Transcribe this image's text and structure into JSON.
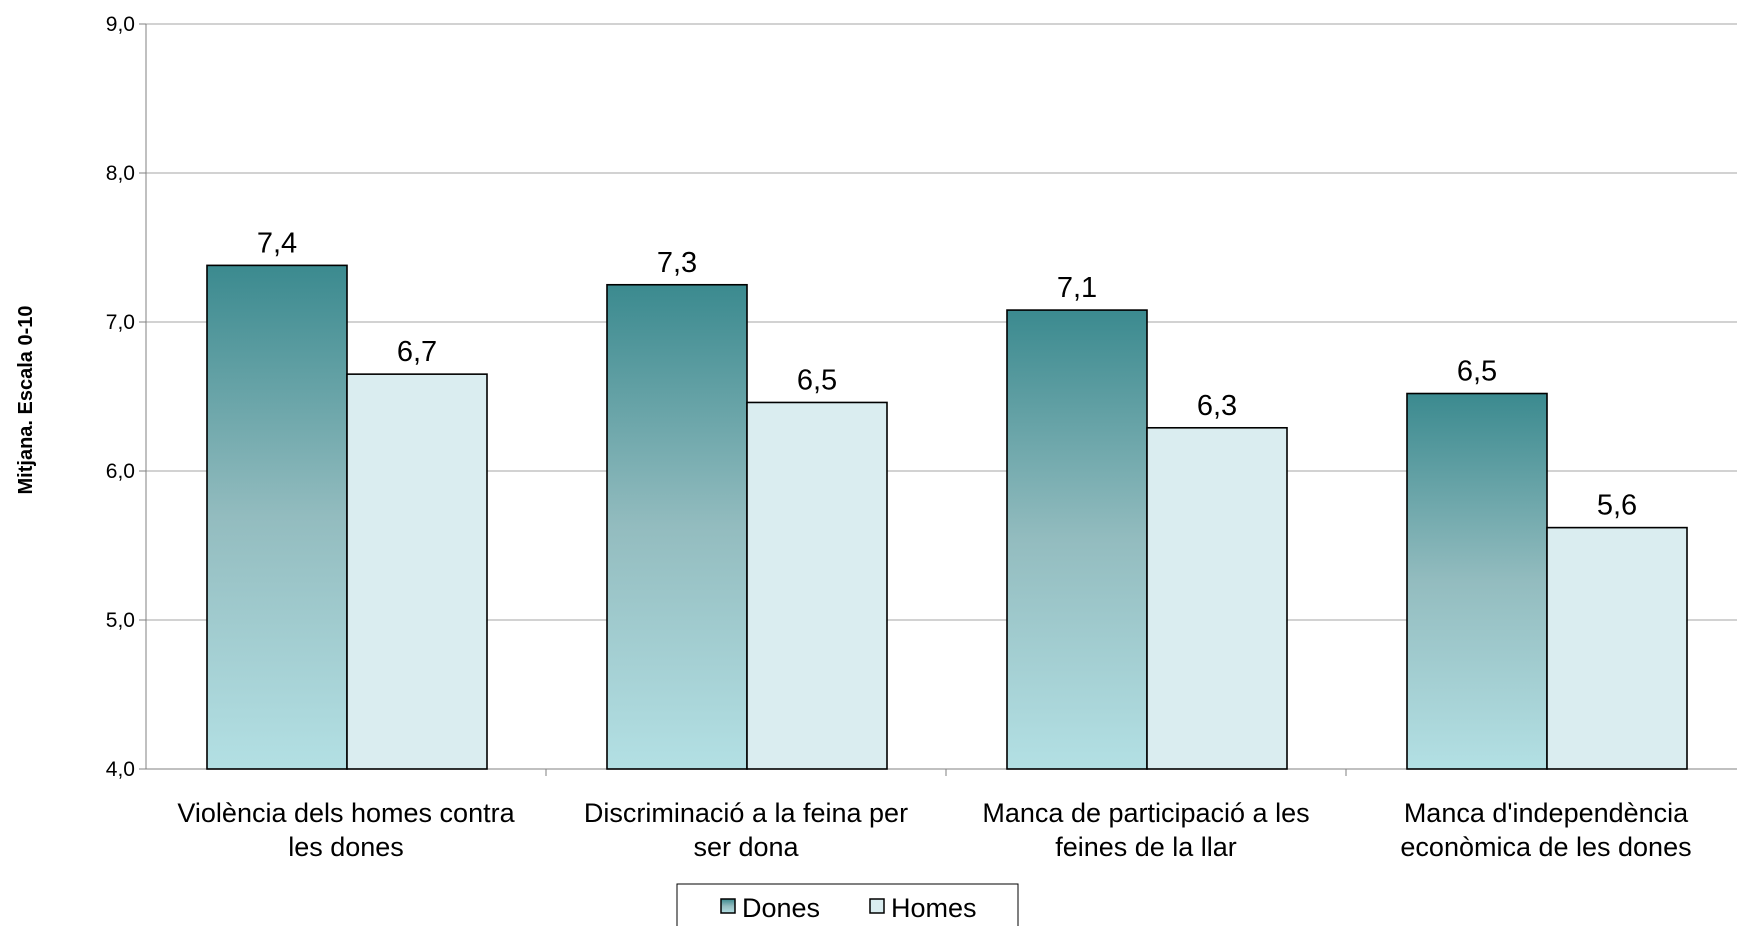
{
  "chart_data": {
    "type": "bar",
    "title": "",
    "ylabel": "Mitjana. Escala 0-10",
    "xlabel": "",
    "ylim": [
      4.0,
      9.0
    ],
    "yticks": [
      "4,0",
      "5,0",
      "6,0",
      "7,0",
      "8,0",
      "9,0"
    ],
    "grid": true,
    "legend_position": "bottom",
    "categories": [
      [
        "Violència dels homes contra",
        "les dones"
      ],
      [
        "Discriminació a la feina per",
        "ser dona"
      ],
      [
        "Manca de participació a les",
        "feines de la llar"
      ],
      [
        "Manca d'independència",
        "econòmica de les dones"
      ]
    ],
    "series": [
      {
        "name": "Dones",
        "values": [
          7.38,
          7.25,
          7.08,
          6.52
        ],
        "labels": [
          "7,4",
          "7,3",
          "7,1",
          "6,5"
        ],
        "color_top": "#3b8a8f",
        "color_bottom": "#b3e0e4"
      },
      {
        "name": "Homes",
        "values": [
          6.65,
          6.46,
          6.29,
          5.62
        ],
        "labels": [
          "6,7",
          "6,5",
          "6,3",
          "5,6"
        ],
        "color": "#daedf0"
      }
    ]
  }
}
